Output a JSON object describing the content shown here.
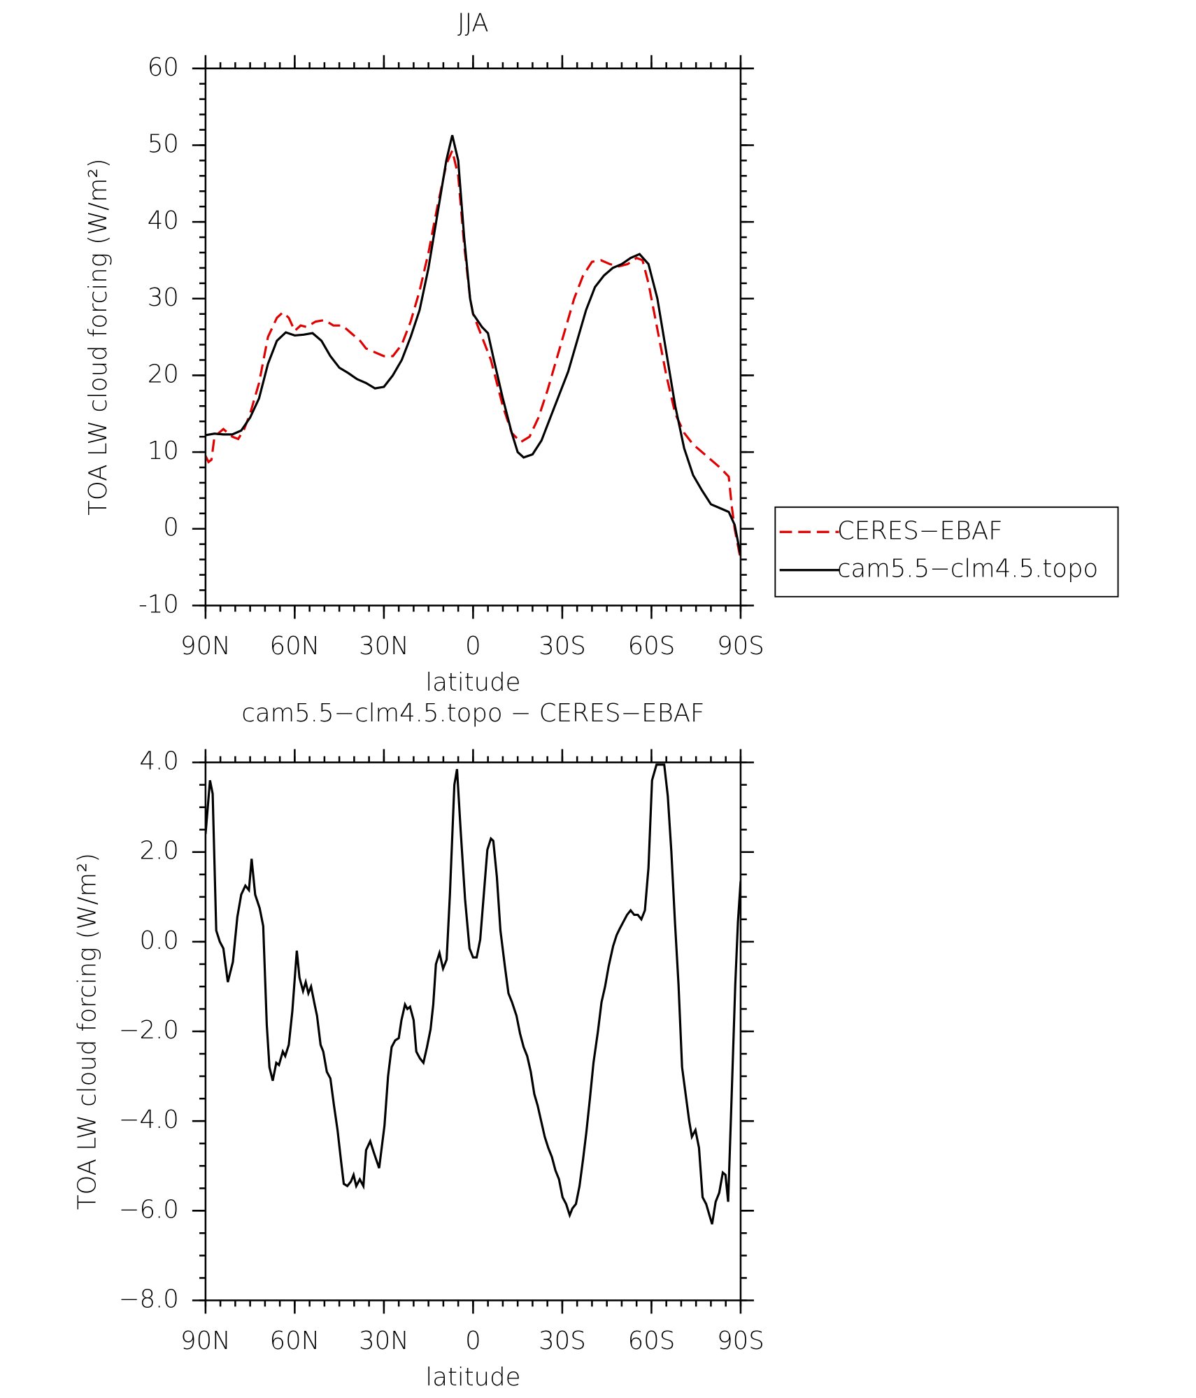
{
  "chart_data": [
    {
      "type": "line",
      "title": "JJA",
      "xlabel": "latitude",
      "ylabel": "TOA LW cloud forcing (W/m²)",
      "xlim": [
        90,
        -90
      ],
      "xticks": [
        {
          "value": 90,
          "label": "90N"
        },
        {
          "value": 60,
          "label": "60N"
        },
        {
          "value": 30,
          "label": "30N"
        },
        0,
        {
          "value": -30,
          "label": "30S"
        },
        {
          "value": -60,
          "label": "60S"
        },
        {
          "value": -90,
          "label": "90S"
        }
      ],
      "ylim": [
        -10,
        60
      ],
      "yticks": [
        -10,
        0,
        10,
        20,
        30,
        40,
        50,
        60
      ],
      "legend": "right",
      "series": [
        {
          "name": "CERES−EBAF",
          "color": "#e00000",
          "dash": true,
          "x": [
            90,
            89,
            88,
            87,
            84,
            81,
            79,
            77,
            75,
            72,
            69,
            66,
            64,
            62,
            60,
            58,
            56,
            53,
            50,
            47,
            44,
            41,
            38,
            36,
            33,
            30,
            27,
            24,
            21,
            18,
            15,
            12,
            9,
            7,
            5,
            3,
            1,
            0,
            -3,
            -6,
            -10,
            -13,
            -16,
            -19,
            -22,
            -25,
            -28,
            -31,
            -34,
            -37,
            -40,
            -43,
            -46,
            -49,
            -52,
            -55,
            -57,
            -59,
            -62,
            -65,
            -68,
            -71,
            -74,
            -77,
            -80,
            -83,
            -86,
            -87,
            -88,
            -90
          ],
          "values": [
            9.5,
            8.7,
            9,
            12,
            13,
            12,
            11.7,
            13,
            15,
            19,
            25,
            27.5,
            28.2,
            27.5,
            25.8,
            26.5,
            26.3,
            27,
            27.2,
            26.5,
            26.5,
            25.5,
            24.5,
            23.5,
            23,
            22.5,
            22.5,
            24,
            27,
            31,
            36,
            42,
            47.5,
            49.3,
            46,
            37,
            30,
            28,
            25,
            22,
            16,
            12.5,
            11.3,
            12,
            14.5,
            18,
            22,
            26,
            30,
            33,
            34.8,
            35,
            34.5,
            34.2,
            34.5,
            35.3,
            35,
            32,
            26,
            20,
            15,
            12.5,
            11,
            10,
            9,
            8,
            6.8,
            3,
            0,
            -4
          ]
        },
        {
          "name": "cam5.5−clm4.5.topo",
          "color": "#000000",
          "dash": false,
          "x": [
            90,
            87,
            84,
            81,
            78,
            75,
            72,
            69,
            66,
            63,
            60,
            57,
            54,
            51,
            48,
            45,
            42,
            39,
            36,
            33,
            30,
            27,
            24,
            21,
            18,
            15,
            12,
            9,
            7,
            5,
            3,
            1,
            0,
            -3,
            -5,
            -7,
            -10,
            -13,
            -15,
            -17,
            -20,
            -23,
            -26,
            -29,
            -32,
            -35,
            -38,
            -41,
            -44,
            -47,
            -50,
            -53,
            -56,
            -59,
            -62,
            -65,
            -68,
            -71,
            -74,
            -77,
            -80,
            -83,
            -86,
            -88,
            -90
          ],
          "values": [
            12.2,
            12.4,
            12.3,
            12.3,
            12.8,
            14.5,
            17,
            21.5,
            24.5,
            25.6,
            25.2,
            25.3,
            25.5,
            24.5,
            22.5,
            21,
            20.3,
            19.5,
            19,
            18.3,
            18.5,
            20,
            22,
            25,
            28.5,
            34,
            41,
            48,
            51.3,
            48,
            38,
            30,
            28,
            26.3,
            25.5,
            22,
            17,
            12.5,
            10,
            9.3,
            9.7,
            11.5,
            14.5,
            17.5,
            20.5,
            24.5,
            28.5,
            31.5,
            33,
            34,
            34.5,
            35.3,
            35.8,
            34.5,
            30,
            23,
            16,
            10.5,
            7,
            5,
            3.2,
            2.7,
            2.2,
            0.5,
            -3.5
          ]
        }
      ]
    },
    {
      "type": "line",
      "title": "cam5.5−clm4.5.topo − CERES−EBAF",
      "xlabel": "latitude",
      "ylabel": "TOA LW cloud forcing (W/m²)",
      "xlim": [
        90,
        -90
      ],
      "xticks": [
        {
          "value": 90,
          "label": "90N"
        },
        {
          "value": 60,
          "label": "60N"
        },
        {
          "value": 30,
          "label": "30N"
        },
        0,
        {
          "value": -30,
          "label": "30S"
        },
        {
          "value": -60,
          "label": "60S"
        },
        {
          "value": -90,
          "label": "90S"
        }
      ],
      "ylim": [
        -8,
        4
      ],
      "yticks": [
        {
          "value": -8,
          "label": "−8.0"
        },
        {
          "value": -6,
          "label": "−6.0"
        },
        {
          "value": -4,
          "label": "−4.0"
        },
        {
          "value": -2,
          "label": "−2.0"
        },
        {
          "value": 0,
          "label": "0.0"
        },
        {
          "value": 2,
          "label": "2.0"
        },
        {
          "value": 4,
          "label": "4.0"
        }
      ],
      "series": [
        {
          "color": "#000000",
          "dash": false,
          "x": [
            90,
            88.5,
            87.6,
            86.4,
            85.2,
            84,
            82.5,
            80.8,
            79.3,
            78,
            76.6,
            75.4,
            74.5,
            73.3,
            71.8,
            70.6,
            69.4,
            68.5,
            67.4,
            66.2,
            65.3,
            64,
            63.2,
            62,
            60.8,
            59.3,
            58.4,
            57.2,
            56.3,
            55.4,
            54.5,
            53.3,
            52.5,
            51.3,
            50.4,
            49.2,
            48,
            46.8,
            45.6,
            44.4,
            43.5,
            42.3,
            41.1,
            40.2,
            39.3,
            38.1,
            36.9,
            36,
            34.6,
            33.4,
            31.6,
            29.8,
            28.6,
            27.4,
            26.2,
            25,
            24.1,
            22.9,
            22.1,
            21.2,
            20,
            19.1,
            17.9,
            16.7,
            15.5,
            14.3,
            13.4,
            12.5,
            11.3,
            10.1,
            8.9,
            7.8,
            6.3,
            5.4,
            4.2,
            2.7,
            1.2,
            0,
            -1.2,
            -2.4,
            -3.6,
            -4.8,
            -6,
            -6.8,
            -8,
            -9.2,
            -10.7,
            -11.9,
            -13.1,
            -14.6,
            -15.8,
            -17,
            -18.2,
            -19.4,
            -20.6,
            -21.7,
            -22.9,
            -24.1,
            -25.3,
            -26.5,
            -27.7,
            -28.9,
            -30.1,
            -31.3,
            -32.5,
            -33.4,
            -34.6,
            -35.8,
            -37,
            -38.1,
            -39.3,
            -40.5,
            -42,
            -43.2,
            -44.4,
            -45.6,
            -47.1,
            -48.3,
            -49.4,
            -50.6,
            -51.8,
            -53,
            -54.2,
            -55.4,
            -56.6,
            -57.8,
            -59,
            -60.2,
            -61.7,
            -62.9,
            -64.3,
            -65.5,
            -66.7,
            -67.9,
            -69.1,
            -70.3,
            -71.5,
            -72.7,
            -73.6,
            -74.8,
            -76,
            -77.2,
            -78.4,
            -79.5,
            -80.4,
            -81.6,
            -82.8,
            -84,
            -84.9,
            -85.8,
            -87,
            -88.2,
            -89.1,
            -90
          ],
          "values": [
            2.4,
            3.6,
            3.3,
            0.25,
            0,
            -0.15,
            -0.9,
            -0.45,
            0.55,
            1.05,
            1.25,
            1.15,
            1.85,
            1.05,
            0.75,
            0.35,
            -1.85,
            -2.8,
            -3.1,
            -2.7,
            -2.75,
            -2.45,
            -2.55,
            -2.3,
            -1.55,
            -0.2,
            -0.8,
            -1.1,
            -0.9,
            -1.15,
            -1,
            -1.4,
            -1.65,
            -2.3,
            -2.45,
            -2.9,
            -3.05,
            -3.65,
            -4.2,
            -4.9,
            -5.4,
            -5.45,
            -5.35,
            -5.2,
            -5.45,
            -5.3,
            -5.45,
            -4.65,
            -4.45,
            -4.7,
            -5.05,
            -4.1,
            -3,
            -2.35,
            -2.2,
            -2.15,
            -1.75,
            -1.4,
            -1.5,
            -1.45,
            -1.75,
            -2.45,
            -2.6,
            -2.7,
            -2.35,
            -1.95,
            -1.4,
            -0.5,
            -0.25,
            -0.6,
            -0.4,
            1.05,
            3.5,
            3.85,
            2.5,
            0.95,
            -0.15,
            -0.35,
            -0.35,
            0.05,
            1.05,
            2.05,
            2.3,
            2.25,
            1.45,
            0.25,
            -0.55,
            -1.15,
            -1.35,
            -1.65,
            -2.05,
            -2.35,
            -2.55,
            -2.9,
            -3.4,
            -3.65,
            -4,
            -4.35,
            -4.6,
            -4.8,
            -5.1,
            -5.3,
            -5.7,
            -5.85,
            -6.1,
            -5.95,
            -5.85,
            -5.45,
            -4.85,
            -4.25,
            -3.5,
            -2.7,
            -2,
            -1.35,
            -1,
            -0.55,
            -0.1,
            0.15,
            0.3,
            0.45,
            0.6,
            0.7,
            0.6,
            0.6,
            0.5,
            0.7,
            1.65,
            3.6,
            3.95,
            3.95,
            3.95,
            3.25,
            2,
            0.45,
            -0.95,
            -2.8,
            -3.4,
            -4,
            -4.35,
            -4.2,
            -4.6,
            -5.7,
            -5.85,
            -6.1,
            -6.3,
            -5.8,
            -5.6,
            -5.15,
            -5.2,
            -5.8,
            -3.4,
            -0.95,
            0.45,
            1.35
          ]
        }
      ]
    }
  ]
}
